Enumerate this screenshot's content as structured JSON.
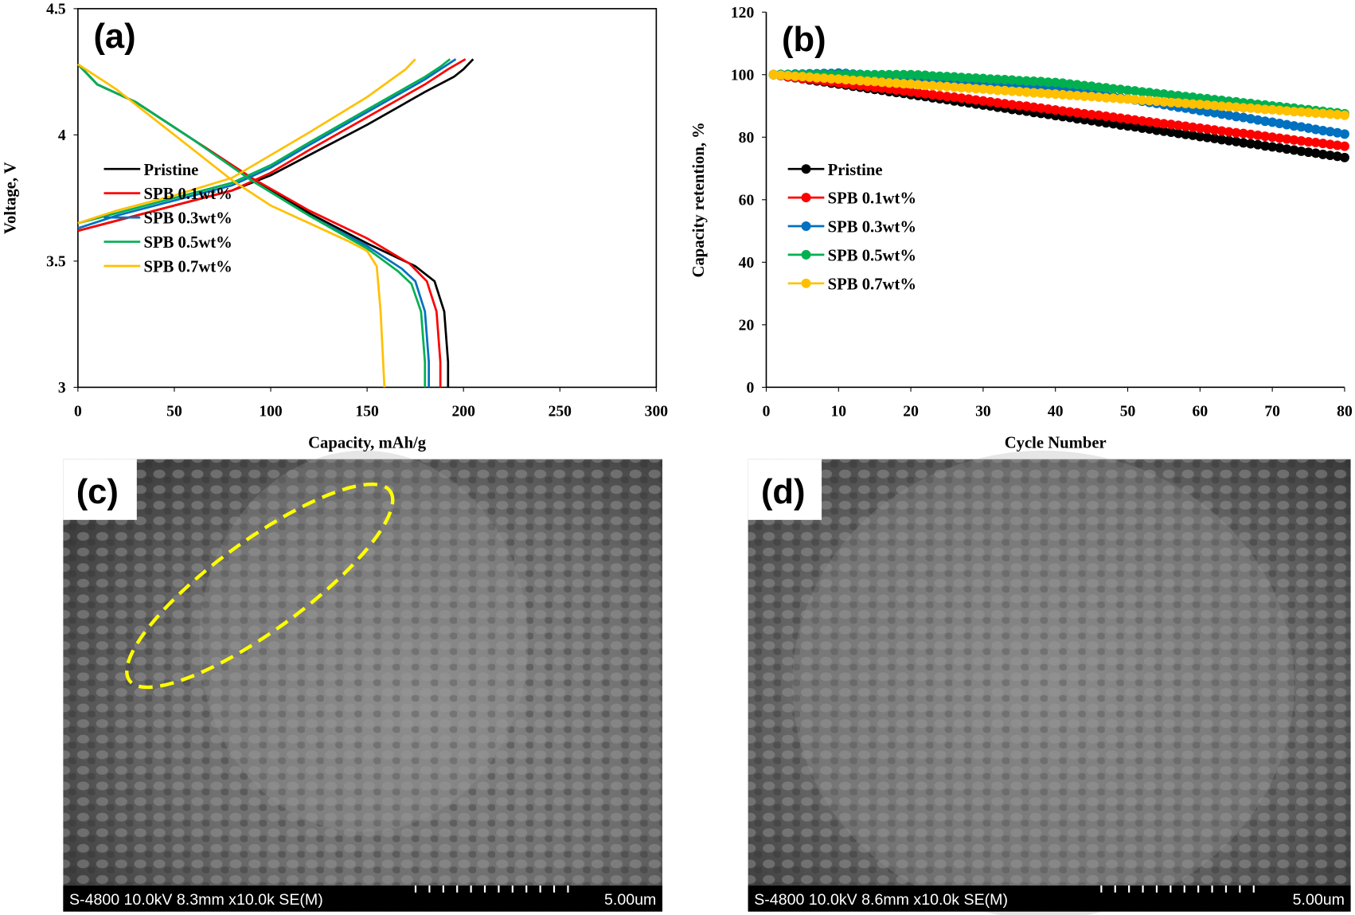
{
  "chart_data": [
    {
      "type": "line",
      "label": "(a)",
      "xlabel": "Capacity, mAh/g",
      "ylabel": "Voltage, V",
      "xlim": [
        0,
        300
      ],
      "ylim": [
        3,
        4.5
      ],
      "xticks": [
        0,
        50,
        100,
        150,
        200,
        250,
        300
      ],
      "yticks": [
        3,
        3.5,
        4,
        4.5
      ],
      "box": true,
      "legend": "lower left",
      "series": [
        {
          "name": "Pristine",
          "color": "#000000",
          "x": [
            0,
            20,
            50,
            80,
            100,
            120,
            150,
            180,
            195,
            200,
            205,
            null,
            0,
            10,
            30,
            60,
            90,
            120,
            150,
            175,
            185,
            190,
            192,
            192
          ],
          "values": [
            3.62,
            3.66,
            3.72,
            3.78,
            3.84,
            3.92,
            4.04,
            4.17,
            4.23,
            4.26,
            4.3,
            null,
            4.28,
            4.2,
            4.13,
            3.98,
            3.83,
            3.69,
            3.57,
            3.48,
            3.42,
            3.3,
            3.1,
            3
          ]
        },
        {
          "name": "SPB 0.1wt%",
          "color": "#ff0000",
          "x": [
            0,
            20,
            50,
            80,
            100,
            120,
            150,
            180,
            192,
            201,
            null,
            0,
            10,
            30,
            60,
            90,
            120,
            150,
            172,
            181,
            186,
            188,
            188
          ],
          "values": [
            3.62,
            3.66,
            3.72,
            3.78,
            3.85,
            3.94,
            4.07,
            4.2,
            4.26,
            4.3,
            null,
            4.28,
            4.2,
            4.13,
            3.98,
            3.83,
            3.7,
            3.59,
            3.49,
            3.42,
            3.3,
            3.1,
            3
          ]
        },
        {
          "name": "SPB 0.3wt%",
          "color": "#0070c0",
          "x": [
            0,
            20,
            50,
            80,
            100,
            120,
            150,
            180,
            190,
            196,
            null,
            0,
            10,
            30,
            60,
            90,
            120,
            150,
            168,
            175,
            180,
            182,
            182
          ],
          "values": [
            3.63,
            3.68,
            3.74,
            3.8,
            3.87,
            3.96,
            4.09,
            4.22,
            4.27,
            4.3,
            null,
            4.28,
            4.2,
            4.13,
            3.98,
            3.82,
            3.68,
            3.56,
            3.47,
            3.42,
            3.3,
            3.1,
            3
          ]
        },
        {
          "name": "SPB 0.5wt%",
          "color": "#00b050",
          "x": [
            0,
            20,
            50,
            80,
            100,
            120,
            150,
            180,
            188,
            193,
            null,
            0,
            10,
            30,
            60,
            90,
            120,
            150,
            166,
            173,
            178,
            180,
            180
          ],
          "values": [
            3.65,
            3.69,
            3.75,
            3.81,
            3.88,
            3.97,
            4.1,
            4.23,
            4.27,
            4.3,
            null,
            4.28,
            4.2,
            4.13,
            3.98,
            3.82,
            3.68,
            3.55,
            3.46,
            3.41,
            3.3,
            3.1,
            3
          ]
        },
        {
          "name": "SPB 0.7wt%",
          "color": "#ffc000",
          "x": [
            0,
            20,
            50,
            80,
            100,
            120,
            150,
            170,
            175,
            null,
            0,
            20,
            40,
            60,
            80,
            100,
            120,
            140,
            150,
            155,
            157,
            159
          ],
          "values": [
            3.65,
            3.7,
            3.76,
            3.83,
            3.92,
            4.01,
            4.15,
            4.26,
            4.3,
            null,
            4.28,
            4.18,
            4.06,
            3.94,
            3.82,
            3.72,
            3.65,
            3.58,
            3.54,
            3.48,
            3.3,
            3
          ]
        }
      ]
    },
    {
      "type": "line",
      "markers": true,
      "label": "(b)",
      "xlabel": "Cycle Number",
      "ylabel": "Capacity retention, %",
      "xlim": [
        0,
        80
      ],
      "ylim": [
        0,
        120
      ],
      "xticks": [
        0,
        10,
        20,
        30,
        40,
        50,
        60,
        70,
        80
      ],
      "yticks": [
        0,
        20,
        40,
        60,
        80,
        100,
        120
      ],
      "box": false,
      "legend": "lower left",
      "x": [
        1,
        2,
        3,
        4,
        5,
        6,
        7,
        8,
        9,
        10,
        11,
        12,
        13,
        14,
        15,
        16,
        17,
        18,
        19,
        20,
        21,
        22,
        23,
        24,
        25,
        26,
        27,
        28,
        29,
        30,
        31,
        32,
        33,
        34,
        35,
        36,
        37,
        38,
        39,
        40,
        41,
        42,
        43,
        44,
        45,
        46,
        47,
        48,
        49,
        50,
        51,
        52,
        53,
        54,
        55,
        56,
        57,
        58,
        59,
        60,
        61,
        62,
        63,
        64,
        65,
        66,
        67,
        68,
        69,
        70,
        71,
        72,
        73,
        74,
        75,
        76,
        77,
        78,
        79,
        80
      ],
      "series": [
        {
          "name": "Pristine",
          "color": "#000000",
          "values": [
            100.0,
            99.7,
            99.3,
            99.0,
            98.7,
            98.3,
            98.0,
            97.7,
            97.3,
            97.0,
            96.7,
            96.3,
            96.0,
            95.6,
            95.3,
            95.0,
            94.6,
            94.3,
            94.0,
            93.6,
            93.3,
            93.0,
            92.6,
            92.3,
            92.0,
            91.6,
            91.3,
            91.0,
            90.6,
            90.3,
            90.0,
            89.6,
            89.3,
            88.9,
            88.6,
            88.3,
            87.9,
            87.6,
            87.3,
            86.9,
            86.6,
            86.3,
            85.9,
            85.6,
            85.3,
            84.9,
            84.6,
            84.3,
            83.9,
            83.6,
            83.3,
            82.9,
            82.6,
            82.2,
            81.9,
            81.6,
            81.2,
            80.9,
            80.6,
            80.2,
            79.9,
            79.6,
            79.2,
            78.9,
            78.6,
            78.2,
            77.9,
            77.6,
            77.2,
            76.9,
            76.6,
            76.2,
            75.9,
            75.5,
            75.2,
            74.9,
            74.5,
            74.2,
            73.9,
            73.5
          ]
        },
        {
          "name": "SPB 0.1wt%",
          "color": "#ff0000",
          "values": [
            100.0,
            99.7,
            99.4,
            99.1,
            98.8,
            98.6,
            98.3,
            98.0,
            97.7,
            97.4,
            97.1,
            96.8,
            96.5,
            96.2,
            95.9,
            95.7,
            95.4,
            95.1,
            94.8,
            94.5,
            94.2,
            93.9,
            93.6,
            93.3,
            93.0,
            92.8,
            92.5,
            92.2,
            91.9,
            91.6,
            91.3,
            91.0,
            90.7,
            90.4,
            90.1,
            89.9,
            89.6,
            89.3,
            89.0,
            88.7,
            88.4,
            88.1,
            87.8,
            87.5,
            87.2,
            87.0,
            86.7,
            86.4,
            86.1,
            85.8,
            85.5,
            85.2,
            84.9,
            84.6,
            84.3,
            84.1,
            83.8,
            83.5,
            83.2,
            82.9,
            82.6,
            82.3,
            82.0,
            81.7,
            81.4,
            81.2,
            80.9,
            80.6,
            80.3,
            80.0,
            79.7,
            79.4,
            79.1,
            78.8,
            78.5,
            78.3,
            78.0,
            77.7,
            77.4,
            77.1
          ]
        },
        {
          "name": "SPB 0.3wt%",
          "color": "#0070c0",
          "values": [
            100.0,
            100.1,
            100.1,
            100.2,
            100.2,
            100.3,
            100.3,
            100.4,
            100.4,
            100.5,
            100.4,
            100.2,
            100.1,
            99.9,
            99.8,
            99.6,
            99.5,
            99.3,
            99.2,
            99.0,
            98.9,
            98.7,
            98.6,
            98.4,
            98.3,
            98.1,
            98.0,
            97.8,
            97.7,
            97.5,
            97.4,
            97.2,
            97.1,
            96.9,
            96.8,
            96.6,
            96.5,
            96.3,
            96.2,
            96.0,
            95.6,
            95.3,
            94.9,
            94.5,
            94.1,
            93.8,
            93.4,
            93.0,
            92.6,
            92.3,
            91.9,
            91.5,
            91.1,
            90.8,
            90.4,
            90.0,
            89.6,
            89.3,
            88.9,
            88.5,
            88.1,
            87.8,
            87.4,
            87.0,
            86.6,
            86.3,
            85.9,
            85.5,
            85.1,
            84.8,
            84.4,
            84.0,
            83.6,
            83.3,
            82.9,
            82.5,
            82.1,
            81.8,
            81.4,
            81.0
          ]
        },
        {
          "name": "SPB 0.5wt%",
          "color": "#00b050",
          "values": [
            100,
            100,
            100,
            100,
            100,
            100,
            100,
            100,
            100,
            100,
            100,
            100,
            100,
            100,
            100,
            100,
            100,
            100,
            100,
            100,
            99.9,
            99.8,
            99.6,
            99.5,
            99.4,
            99.3,
            99.1,
            99.0,
            98.9,
            98.8,
            98.6,
            98.5,
            98.4,
            98.3,
            98.1,
            98.0,
            97.9,
            97.8,
            97.6,
            97.5,
            97.3,
            97.0,
            96.8,
            96.5,
            96.3,
            96.0,
            95.8,
            95.5,
            95.3,
            95.0,
            94.8,
            94.5,
            94.3,
            94.0,
            93.8,
            93.5,
            93.3,
            93.0,
            92.8,
            92.5,
            92.3,
            92.0,
            91.8,
            91.5,
            91.3,
            91.0,
            90.8,
            90.5,
            90.3,
            90.0,
            89.8,
            89.5,
            89.3,
            89.0,
            88.8,
            88.5,
            88.3,
            88.0,
            87.8,
            87.5
          ]
        },
        {
          "name": "SPB 0.7wt%",
          "color": "#ffc000",
          "values": [
            100.0,
            99.8,
            99.7,
            99.5,
            99.4,
            99.2,
            99.0,
            98.9,
            98.7,
            98.6,
            98.4,
            98.2,
            98.1,
            97.9,
            97.8,
            97.6,
            97.4,
            97.3,
            97.1,
            97.0,
            96.8,
            96.6,
            96.5,
            96.3,
            96.2,
            96.0,
            95.8,
            95.7,
            95.5,
            95.4,
            95.2,
            95.0,
            94.9,
            94.7,
            94.6,
            94.4,
            94.2,
            94.1,
            93.9,
            93.8,
            93.6,
            93.4,
            93.3,
            93.1,
            93.0,
            92.8,
            92.6,
            92.5,
            92.3,
            92.2,
            92.0,
            91.8,
            91.7,
            91.5,
            91.3,
            91.1,
            91.0,
            90.8,
            90.6,
            90.5,
            90.3,
            90.1,
            89.9,
            89.8,
            89.6,
            89.4,
            89.3,
            89.1,
            88.9,
            88.8,
            88.6,
            88.4,
            88.2,
            88.1,
            87.9,
            87.7,
            87.6,
            87.4,
            87.2,
            87.0
          ]
        }
      ]
    }
  ],
  "images": [
    {
      "label": "(c)",
      "caption": "S-4800 10.0kV 8.3mm x10.0k SE(M)",
      "scale": "5.00um"
    },
    {
      "label": "(d)",
      "caption": "S-4800 10.0kV 8.6mm x10.0k SE(M)",
      "scale": "5.00um"
    }
  ]
}
